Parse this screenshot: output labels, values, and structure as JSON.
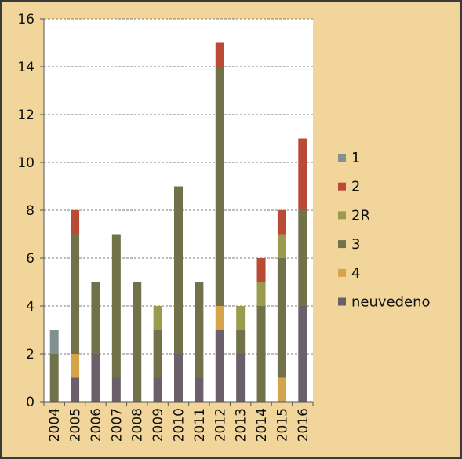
{
  "chart_data": {
    "type": "bar",
    "stacked": true,
    "categories": [
      "2004",
      "2005",
      "2006",
      "2007",
      "2008",
      "2009",
      "2010",
      "2011",
      "2012",
      "2013",
      "2014",
      "2015",
      "2016"
    ],
    "series": [
      {
        "name": "neuvedeno",
        "color": "#6b5f6a",
        "values": [
          0,
          1,
          2,
          1,
          0,
          1,
          2,
          1,
          3,
          2,
          0,
          0,
          4
        ]
      },
      {
        "name": "4",
        "color": "#d4a34a",
        "values": [
          0,
          1,
          0,
          0,
          0,
          0,
          0,
          0,
          1,
          0,
          0,
          1,
          0
        ]
      },
      {
        "name": "3",
        "color": "#717249",
        "values": [
          2,
          5,
          3,
          6,
          5,
          2,
          7,
          4,
          10,
          1,
          4,
          5,
          4
        ]
      },
      {
        "name": "2R",
        "color": "#9b9b4e",
        "values": [
          0,
          0,
          0,
          0,
          0,
          1,
          0,
          0,
          0,
          1,
          1,
          1,
          0
        ]
      },
      {
        "name": "2",
        "color": "#b94a36",
        "values": [
          0,
          1,
          0,
          0,
          0,
          0,
          0,
          0,
          1,
          0,
          1,
          1,
          3
        ]
      },
      {
        "name": "1",
        "color": "#7f9190",
        "values": [
          1,
          0,
          0,
          0,
          0,
          0,
          0,
          0,
          0,
          0,
          0,
          0,
          0
        ]
      }
    ],
    "legend_order": [
      "1",
      "2",
      "2R",
      "3",
      "4",
      "neuvedeno"
    ],
    "yticks": [
      "0",
      "2",
      "4",
      "6",
      "8",
      "10",
      "12",
      "14",
      "16"
    ],
    "ylim": [
      0,
      16
    ],
    "grid": true,
    "legend_position": "right",
    "title": "",
    "xlabel": "",
    "ylabel": ""
  }
}
